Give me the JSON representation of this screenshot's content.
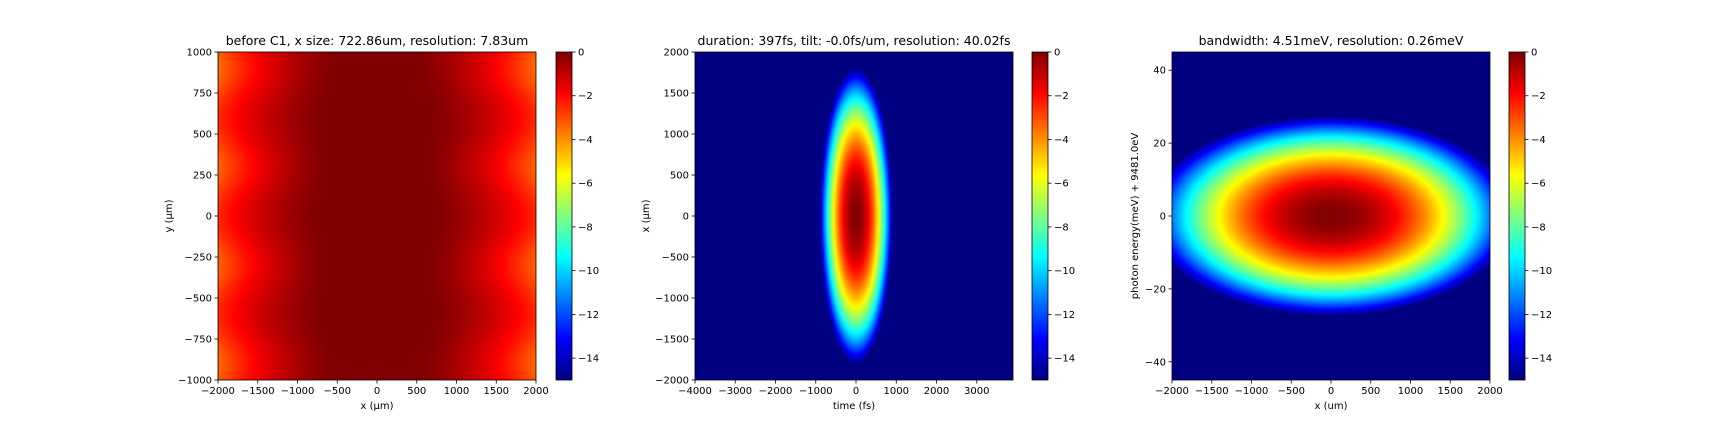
{
  "chart_data": [
    {
      "type": "heatmap",
      "title": "before C1, x size: 722.86um, resolution: 7.83um",
      "xlabel": "x (μm)",
      "ylabel": "y (μm)",
      "xlim": [
        -2000,
        2000
      ],
      "ylim": [
        -1000,
        1000
      ],
      "xticks": [
        -2000,
        -1500,
        -1000,
        -500,
        0,
        500,
        1000,
        1500,
        2000
      ],
      "xtick_labels": [
        "−2000",
        "−1500",
        "−1000",
        "−500",
        "0",
        "500",
        "1000",
        "1500",
        "2000"
      ],
      "yticks": [
        1000,
        750,
        500,
        250,
        0,
        -250,
        -500,
        -750,
        -1000
      ],
      "ytick_labels": [
        "1000",
        "750",
        "500",
        "250",
        "0",
        "−250",
        "−500",
        "−750",
        "−1000"
      ],
      "colorbar": {
        "range": [
          -15,
          0
        ],
        "ticks": [
          0,
          -2,
          -4,
          -6,
          -8,
          -10,
          -12,
          -14
        ],
        "tick_labels": [
          "0",
          "−2",
          "−4",
          "−6",
          "−8",
          "−10",
          "−12",
          "−14"
        ]
      },
      "colormap": "jet",
      "field": {
        "shape": "vertical-lobed",
        "sigma_x": 725,
        "sigma_y": 1000,
        "peak": [
          0,
          -100
        ],
        "min": -15,
        "max": 0
      }
    },
    {
      "type": "heatmap",
      "title": "duration: 397fs, tilt: -0.0fs/um, resolution: 40.02fs",
      "xlabel": "time (fs)",
      "ylabel": "x (μm)",
      "xlim": [
        -4000,
        3900
      ],
      "ylim": [
        -2000,
        2000
      ],
      "xticks": [
        -4000,
        -3000,
        -2000,
        -1000,
        0,
        1000,
        2000,
        3000
      ],
      "xtick_labels": [
        "−4000",
        "−3000",
        "−2000",
        "−1000",
        "0",
        "1000",
        "2000",
        "3000"
      ],
      "yticks": [
        2000,
        1500,
        1000,
        500,
        0,
        -500,
        -1000,
        -1500,
        -2000
      ],
      "ytick_labels": [
        "2000",
        "1500",
        "1000",
        "500",
        "0",
        "−500",
        "−1000",
        "−1500",
        "−2000"
      ],
      "colorbar": {
        "range": [
          -15,
          0
        ],
        "ticks": [
          0,
          -2,
          -4,
          -6,
          -8,
          -10,
          -12,
          -14
        ],
        "tick_labels": [
          "0",
          "−2",
          "−4",
          "−6",
          "−8",
          "−10",
          "−12",
          "−14"
        ]
      },
      "colormap": "jet",
      "field": {
        "shape": "ellipse",
        "sigma_x": 166,
        "sigma_y": 330,
        "peak": [
          0,
          0
        ],
        "min": -15,
        "max": 0
      }
    },
    {
      "type": "heatmap",
      "title": "bandwidth: 4.51meV, resolution: 0.26meV",
      "xlabel": "x (um)",
      "ylabel": "photon energy(meV) + 9481.0eV",
      "xlim": [
        -2000,
        2000
      ],
      "ylim": [
        -45,
        45
      ],
      "xticks": [
        -2000,
        -1500,
        -1000,
        -500,
        0,
        500,
        1000,
        1500,
        2000
      ],
      "xtick_labels": [
        "−2000",
        "−1500",
        "−1000",
        "−500",
        "0",
        "500",
        "1000",
        "1500",
        "2000"
      ],
      "yticks": [
        40,
        20,
        0,
        -20,
        -40
      ],
      "ytick_labels": [
        "40",
        "20",
        "0",
        "−20",
        "−40"
      ],
      "colorbar": {
        "range": [
          -15,
          0
        ],
        "ticks": [
          0,
          -2,
          -4,
          -6,
          -8,
          -10,
          -12,
          -14
        ],
        "tick_labels": [
          "0",
          "−2",
          "−4",
          "−6",
          "−8",
          "−10",
          "−12",
          "−14"
        ]
      },
      "colormap": "jet",
      "field": {
        "shape": "ellipse",
        "sigma_x": 420,
        "sigma_y": 5.0,
        "peak": [
          0,
          0
        ],
        "min": -15,
        "max": 0
      }
    }
  ]
}
